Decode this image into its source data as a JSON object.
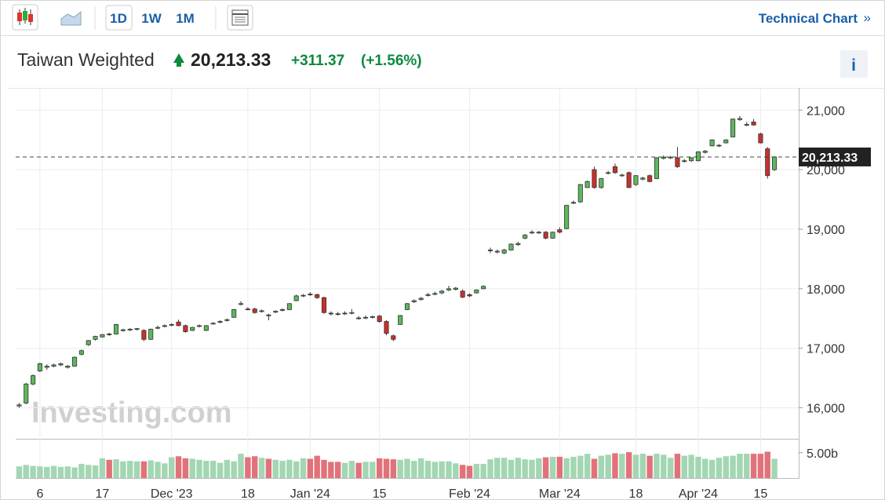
{
  "header": {
    "intervals": [
      "1D",
      "1W",
      "1M"
    ],
    "link": "Technical Chart",
    "info": "i"
  },
  "chart_data": {
    "type": "candlestick",
    "title": "Taiwan Weighted",
    "last": "20,213.33",
    "change": "+311.37",
    "change_pct": "(+1.56%)",
    "watermark": "Investing.com",
    "up_color": "#5cb85c",
    "down_color": "#c9302c",
    "volume_up_color": "#a3d6b3",
    "volume_down_color": "#e2727a",
    "ylim": [
      15480,
      21373
    ],
    "yticks": [
      {
        "value": 16000,
        "label": "16,000"
      },
      {
        "value": 17000,
        "label": "17,000"
      },
      {
        "value": 18000,
        "label": "18,000"
      },
      {
        "value": 19000,
        "label": "19,000"
      },
      {
        "value": 20000,
        "label": "20,000"
      },
      {
        "value": 21000,
        "label": "21,000"
      }
    ],
    "price_line": {
      "value": 20213.33,
      "label": "20,213.33"
    },
    "vlim": [
      0,
      7.6
    ],
    "vticks": [
      {
        "value": 5,
        "label": "5.00b"
      }
    ],
    "xlim": [
      -0.5,
      112.5
    ],
    "xticks": [
      {
        "value": 3,
        "label": "6"
      },
      {
        "value": 12,
        "label": "17"
      },
      {
        "value": 22,
        "label": "Dec '23"
      },
      {
        "value": 33,
        "label": "18"
      },
      {
        "value": 42,
        "label": "Jan '24"
      },
      {
        "value": 52,
        "label": "15"
      },
      {
        "value": 65,
        "label": "Feb '24"
      },
      {
        "value": 78,
        "label": "Mar '24"
      },
      {
        "value": 89,
        "label": "18"
      },
      {
        "value": 98,
        "label": "Apr '24"
      },
      {
        "value": 107,
        "label": "15"
      }
    ],
    "candles": [
      [
        16030,
        16080,
        16000,
        16050
      ],
      [
        16080,
        16420,
        16060,
        16400
      ],
      [
        16400,
        16560,
        16380,
        16540
      ],
      [
        16620,
        16760,
        16600,
        16740
      ],
      [
        16680,
        16730,
        16640,
        16700
      ],
      [
        16700,
        16740,
        16680,
        16720
      ],
      [
        16720,
        16760,
        16700,
        16740
      ],
      [
        16680,
        16720,
        16660,
        16700
      ],
      [
        16700,
        16860,
        16690,
        16850
      ],
      [
        16900,
        16980,
        16880,
        16960
      ],
      [
        17060,
        17140,
        17040,
        17130
      ],
      [
        17150,
        17210,
        17130,
        17200
      ],
      [
        17190,
        17240,
        17180,
        17230
      ],
      [
        17240,
        17260,
        17210,
        17230
      ],
      [
        17240,
        17410,
        17230,
        17400
      ],
      [
        17300,
        17330,
        17280,
        17310
      ],
      [
        17310,
        17340,
        17290,
        17320
      ],
      [
        17320,
        17340,
        17300,
        17330
      ],
      [
        17300,
        17320,
        17120,
        17150
      ],
      [
        17150,
        17330,
        17140,
        17320
      ],
      [
        17340,
        17380,
        17320,
        17350
      ],
      [
        17370,
        17400,
        17350,
        17380
      ],
      [
        17390,
        17420,
        17370,
        17400
      ],
      [
        17440,
        17480,
        17370,
        17380
      ],
      [
        17380,
        17400,
        17260,
        17280
      ],
      [
        17300,
        17360,
        17290,
        17350
      ],
      [
        17370,
        17400,
        17350,
        17380
      ],
      [
        17300,
        17390,
        17290,
        17380
      ],
      [
        17410,
        17440,
        17400,
        17420
      ],
      [
        17440,
        17470,
        17420,
        17450
      ],
      [
        17470,
        17500,
        17450,
        17480
      ],
      [
        17520,
        17660,
        17510,
        17650
      ],
      [
        17740,
        17790,
        17720,
        17750
      ],
      [
        17660,
        17690,
        17640,
        17650
      ],
      [
        17660,
        17680,
        17580,
        17600
      ],
      [
        17620,
        17650,
        17600,
        17630
      ],
      [
        17560,
        17580,
        17470,
        17550
      ],
      [
        17610,
        17640,
        17590,
        17620
      ],
      [
        17640,
        17670,
        17620,
        17650
      ],
      [
        17650,
        17760,
        17640,
        17750
      ],
      [
        17800,
        17900,
        17790,
        17880
      ],
      [
        17880,
        17910,
        17860,
        17890
      ],
      [
        17910,
        17940,
        17880,
        17900
      ],
      [
        17900,
        17920,
        17830,
        17850
      ],
      [
        17850,
        17870,
        17580,
        17600
      ],
      [
        17590,
        17620,
        17550,
        17580
      ],
      [
        17580,
        17610,
        17550,
        17570
      ],
      [
        17580,
        17620,
        17560,
        17590
      ],
      [
        17590,
        17660,
        17570,
        17600
      ],
      [
        17510,
        17540,
        17480,
        17500
      ],
      [
        17510,
        17550,
        17490,
        17520
      ],
      [
        17520,
        17550,
        17500,
        17530
      ],
      [
        17540,
        17560,
        17430,
        17450
      ],
      [
        17450,
        17470,
        17220,
        17250
      ],
      [
        17210,
        17230,
        17120,
        17150
      ],
      [
        17400,
        17560,
        17390,
        17550
      ],
      [
        17650,
        17760,
        17640,
        17750
      ],
      [
        17780,
        17820,
        17760,
        17800
      ],
      [
        17820,
        17860,
        17800,
        17840
      ],
      [
        17890,
        17930,
        17870,
        17900
      ],
      [
        17910,
        17950,
        17890,
        17920
      ],
      [
        17930,
        17980,
        17910,
        17960
      ],
      [
        17980,
        18050,
        17960,
        18000
      ],
      [
        17990,
        18030,
        17970,
        18010
      ],
      [
        17960,
        17990,
        17840,
        17860
      ],
      [
        17900,
        17920,
        17860,
        17880
      ],
      [
        17930,
        17990,
        17920,
        17980
      ],
      [
        18000,
        18060,
        17990,
        18040
      ],
      [
        18640,
        18690,
        18600,
        18650
      ],
      [
        18620,
        18660,
        18590,
        18630
      ],
      [
        18600,
        18670,
        18580,
        18650
      ],
      [
        18650,
        18760,
        18640,
        18750
      ],
      [
        18740,
        18790,
        18720,
        18760
      ],
      [
        18850,
        18920,
        18830,
        18900
      ],
      [
        18940,
        18980,
        18920,
        18950
      ],
      [
        18940,
        18970,
        18920,
        18950
      ],
      [
        18950,
        18970,
        18830,
        18850
      ],
      [
        18850,
        18960,
        18840,
        18950
      ],
      [
        18990,
        19030,
        18930,
        18950
      ],
      [
        19010,
        19410,
        19000,
        19400
      ],
      [
        19440,
        19480,
        19420,
        19450
      ],
      [
        19460,
        19760,
        19440,
        19750
      ],
      [
        19700,
        19820,
        19690,
        19800
      ],
      [
        20000,
        20050,
        19680,
        19700
      ],
      [
        19700,
        19860,
        19680,
        19850
      ],
      [
        19940,
        19980,
        19920,
        19950
      ],
      [
        20050,
        20100,
        19930,
        19950
      ],
      [
        19900,
        19930,
        19880,
        19910
      ],
      [
        19950,
        19970,
        19690,
        19700
      ],
      [
        19750,
        19910,
        19730,
        19900
      ],
      [
        19840,
        19880,
        19820,
        19860
      ],
      [
        19900,
        19920,
        19790,
        19800
      ],
      [
        19850,
        20210,
        19840,
        20200
      ],
      [
        20190,
        20240,
        20170,
        20210
      ],
      [
        20200,
        20230,
        20180,
        20210
      ],
      [
        20200,
        20380,
        20030,
        20050
      ],
      [
        20140,
        20180,
        20120,
        20150
      ],
      [
        20150,
        20210,
        20130,
        20200
      ],
      [
        20150,
        20310,
        20140,
        20300
      ],
      [
        20290,
        20330,
        20270,
        20310
      ],
      [
        20400,
        20510,
        20390,
        20500
      ],
      [
        20400,
        20430,
        20380,
        20410
      ],
      [
        20450,
        20510,
        20440,
        20500
      ],
      [
        20550,
        20860,
        20540,
        20850
      ],
      [
        20840,
        20900,
        20820,
        20860
      ],
      [
        20760,
        20800,
        20730,
        20760
      ],
      [
        20800,
        20850,
        20740,
        20750
      ],
      [
        20600,
        20620,
        20440,
        20450
      ],
      [
        20350,
        20380,
        19850,
        19900
      ],
      [
        20000,
        20230,
        19980,
        20213.33
      ]
    ],
    "volume": [
      2.3,
      2.6,
      2.4,
      2.3,
      2.2,
      2.4,
      2.2,
      2.3,
      2.1,
      2.8,
      2.6,
      2.5,
      3.9,
      3.6,
      3.7,
      3.3,
      3.4,
      3.3,
      3.3,
      3.5,
      3.2,
      2.9,
      4.1,
      4.3,
      3.9,
      3.8,
      3.6,
      3.4,
      3.4,
      3.0,
      3.6,
      3.3,
      4.8,
      4.1,
      4.3,
      4.0,
      3.8,
      3.6,
      3.4,
      3.6,
      3.3,
      3.9,
      3.8,
      4.4,
      3.6,
      3.2,
      3.2,
      3.0,
      3.4,
      3.0,
      3.2,
      3.2,
      3.9,
      3.8,
      3.7,
      3.6,
      3.8,
      3.4,
      3.9,
      3.4,
      3.2,
      3.3,
      3.3,
      2.9,
      2.6,
      2.4,
      2.8,
      2.8,
      3.7,
      4.0,
      4.0,
      3.6,
      4.0,
      3.7,
      3.6,
      3.9,
      4.1,
      4.2,
      4.2,
      3.9,
      4.2,
      4.4,
      4.8,
      3.8,
      4.4,
      4.6,
      4.9,
      4.8,
      5.1,
      4.6,
      4.8,
      4.4,
      4.8,
      4.6,
      4.0,
      4.8,
      4.4,
      4.6,
      4.2,
      3.8,
      3.6,
      4.0,
      4.3,
      4.4,
      4.8,
      4.8,
      4.8,
      4.8,
      5.2,
      3.8
    ]
  }
}
